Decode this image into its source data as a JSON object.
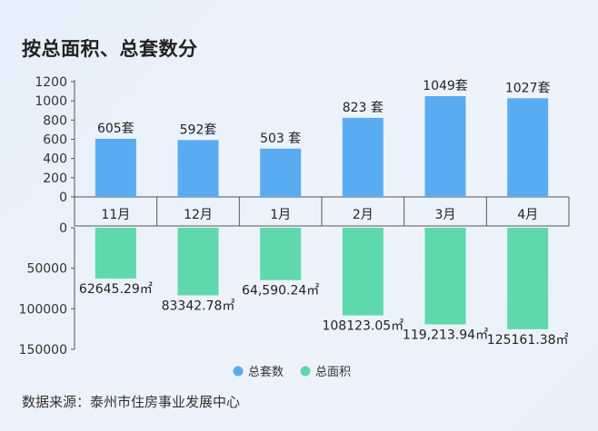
{
  "title": "按总面积、总套数分",
  "source": "数据来源：泰州市住房事业发展中心",
  "chart_data": {
    "type": "bar",
    "title": "按总面积、总套数分",
    "categories": [
      "11月",
      "12月",
      "1月",
      "2月",
      "3月",
      "4月"
    ],
    "top_axis": {
      "ylim": [
        0,
        1200
      ],
      "ticks": [
        0,
        200,
        400,
        600,
        800,
        1000,
        1200
      ]
    },
    "bottom_axis": {
      "ylim": [
        0,
        150000
      ],
      "ticks": [
        0,
        50000,
        100000,
        150000
      ],
      "inverted": true
    },
    "series": [
      {
        "name": "总套数",
        "color": "#5aacf2",
        "values": [
          605,
          592,
          503,
          823,
          1049,
          1027
        ],
        "labels": [
          "605套",
          "592套",
          "503 套",
          "823 套",
          "1049套",
          "1027套"
        ]
      },
      {
        "name": "总面积",
        "color": "#5fd8ae",
        "values": [
          62645.29,
          83342.78,
          64590.24,
          108123.05,
          119213.94,
          125161.38
        ],
        "labels": [
          "62645.29㎡",
          "83342.78㎡",
          "64,590.24㎡",
          "108123.05㎡",
          "119,213.94㎡",
          "125161.38㎡"
        ]
      }
    ],
    "legend": {
      "position": "bottom",
      "items": [
        "总套数",
        "总面积"
      ]
    }
  }
}
